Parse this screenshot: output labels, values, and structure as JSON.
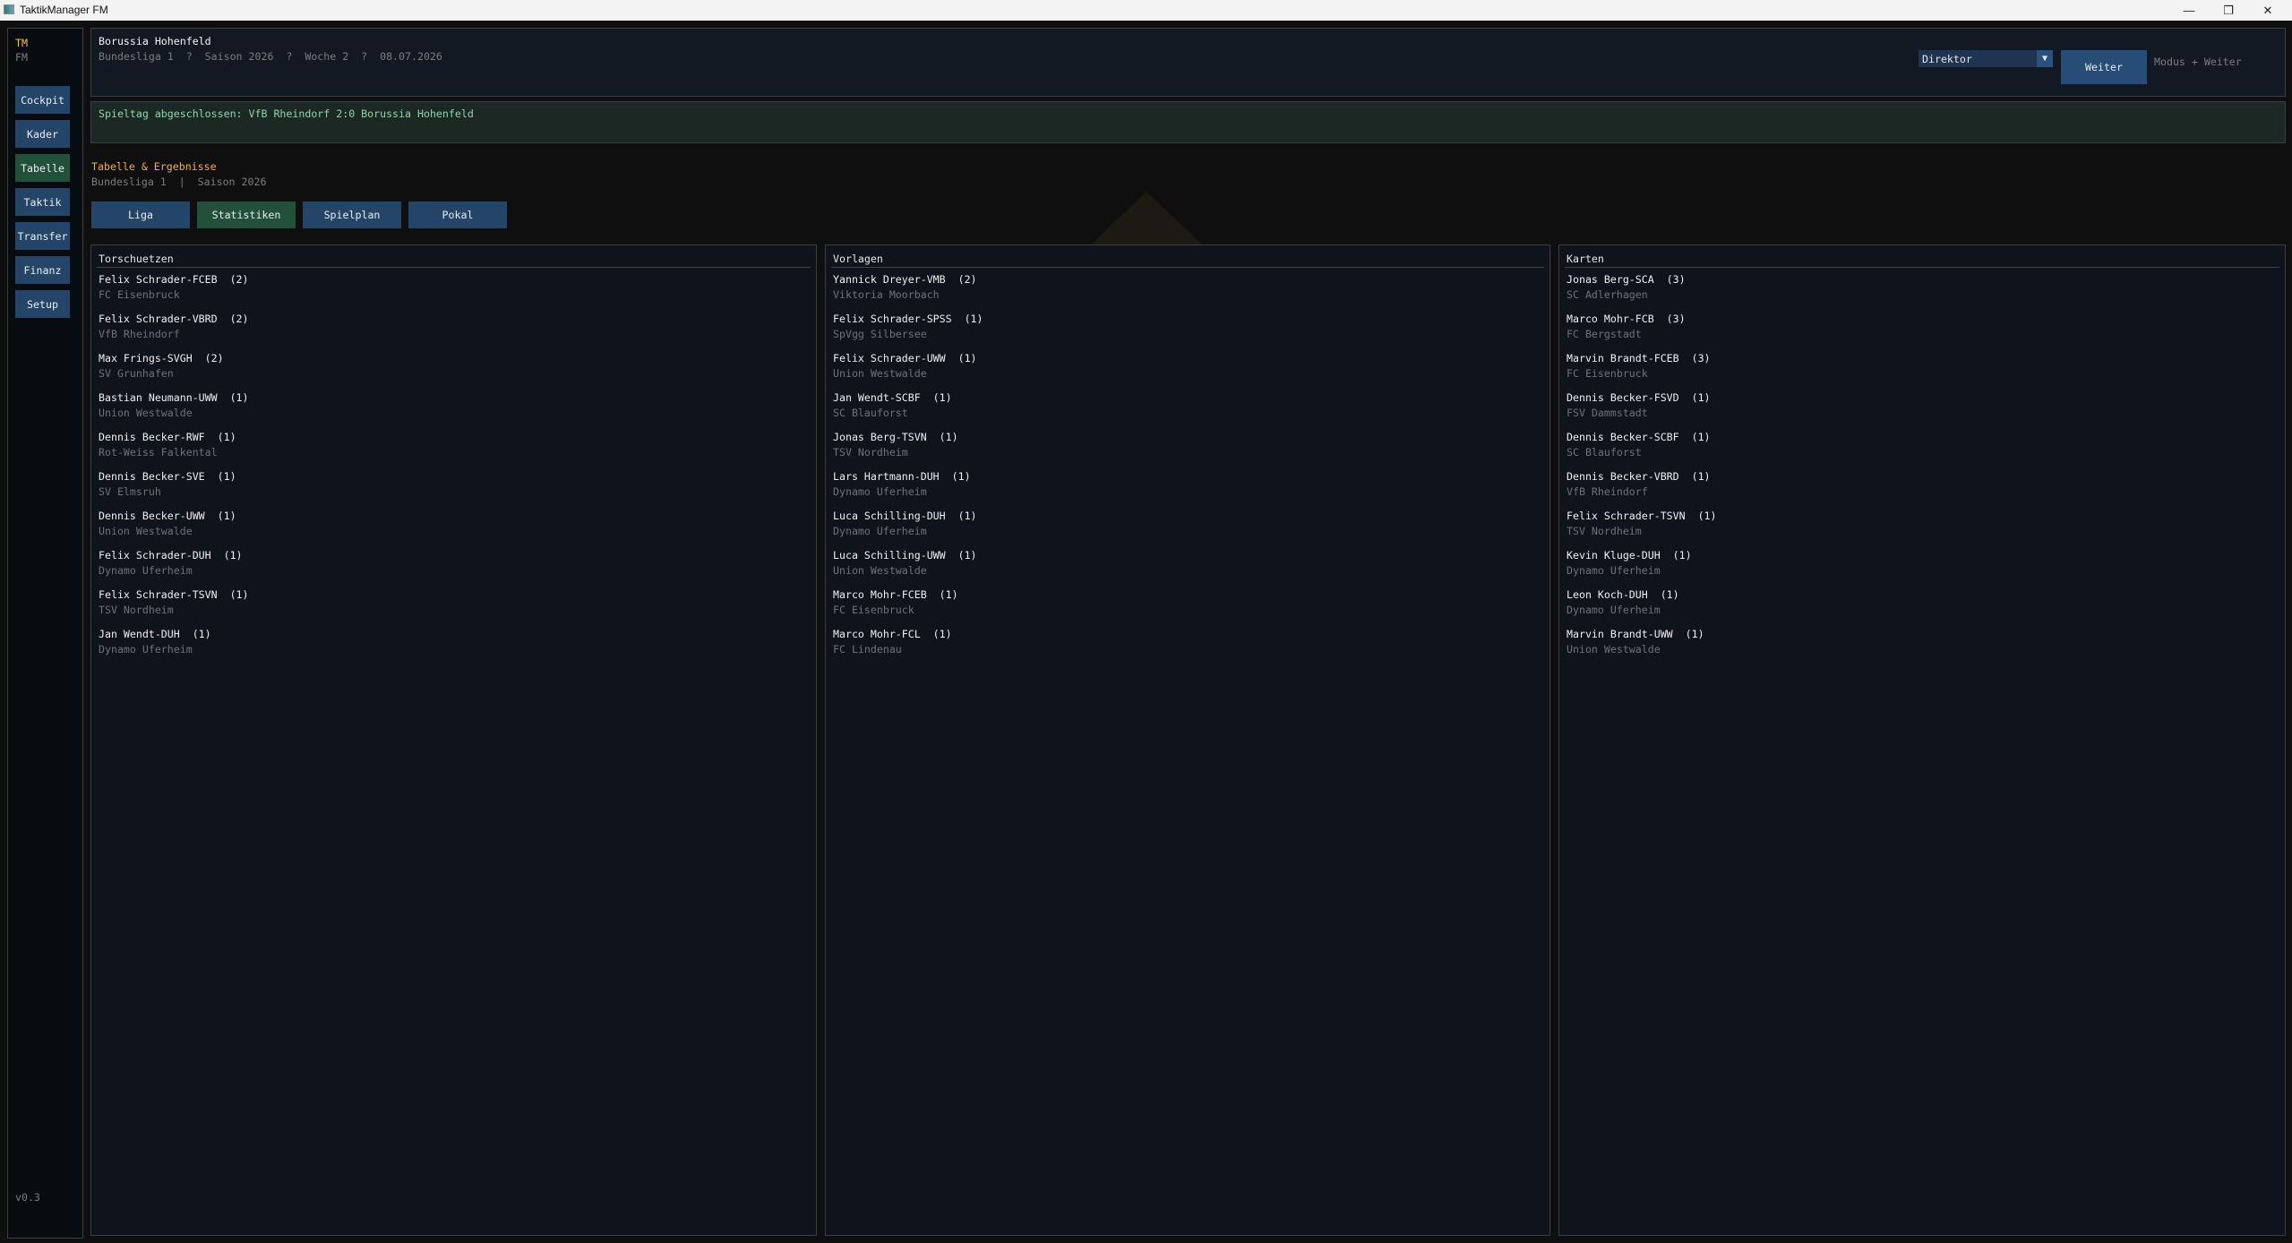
{
  "window": {
    "title": "TaktikManager FM"
  },
  "sidebar": {
    "logo_top": "TM",
    "logo_bottom": "FM",
    "items": [
      {
        "label": "Cockpit",
        "active": false
      },
      {
        "label": "Kader",
        "active": false
      },
      {
        "label": "Tabelle",
        "active": true
      },
      {
        "label": "Taktik",
        "active": false
      },
      {
        "label": "Transfer",
        "active": false
      },
      {
        "label": "Finanz",
        "active": false
      },
      {
        "label": "Setup",
        "active": false
      }
    ],
    "version": "v0.3"
  },
  "header": {
    "club": "Borussia Hohenfeld",
    "info": "Bundesliga 1  ?  Saison 2026  ?  Woche 2  ?  08.07.2026",
    "mode_select": "Direktor",
    "continue_label": "Weiter",
    "hint": "Modus + Weiter"
  },
  "notification": "Spieltag abgeschlossen: VfB Rheindorf 2:0 Borussia Hohenfeld",
  "section": {
    "title": "Tabelle & Ergebnisse",
    "subtitle": "Bundesliga 1  |  Saison 2026"
  },
  "tabs": [
    {
      "label": "Liga",
      "active": false
    },
    {
      "label": "Statistiken",
      "active": true
    },
    {
      "label": "Spielplan",
      "active": false
    },
    {
      "label": "Pokal",
      "active": false
    }
  ],
  "columns": [
    {
      "title": "Torschuetzen",
      "entries": [
        {
          "name": "Felix Schrader-FCEB  (2)",
          "team": "FC Eisenbruck"
        },
        {
          "name": "Felix Schrader-VBRD  (2)",
          "team": "VfB Rheindorf"
        },
        {
          "name": "Max Frings-SVGH  (2)",
          "team": "SV Grunhafen"
        },
        {
          "name": "Bastian Neumann-UWW  (1)",
          "team": "Union Westwalde"
        },
        {
          "name": "Dennis Becker-RWF  (1)",
          "team": "Rot-Weiss Falkental"
        },
        {
          "name": "Dennis Becker-SVE  (1)",
          "team": "SV Elmsruh"
        },
        {
          "name": "Dennis Becker-UWW  (1)",
          "team": "Union Westwalde"
        },
        {
          "name": "Felix Schrader-DUH  (1)",
          "team": "Dynamo Uferheim"
        },
        {
          "name": "Felix Schrader-TSVN  (1)",
          "team": "TSV Nordheim"
        },
        {
          "name": "Jan Wendt-DUH  (1)",
          "team": "Dynamo Uferheim"
        }
      ]
    },
    {
      "title": "Vorlagen",
      "entries": [
        {
          "name": "Yannick Dreyer-VMB  (2)",
          "team": "Viktoria Moorbach"
        },
        {
          "name": "Felix Schrader-SPSS  (1)",
          "team": "SpVgg Silbersee"
        },
        {
          "name": "Felix Schrader-UWW  (1)",
          "team": "Union Westwalde"
        },
        {
          "name": "Jan Wendt-SCBF  (1)",
          "team": "SC Blauforst"
        },
        {
          "name": "Jonas Berg-TSVN  (1)",
          "team": "TSV Nordheim"
        },
        {
          "name": "Lars Hartmann-DUH  (1)",
          "team": "Dynamo Uferheim"
        },
        {
          "name": "Luca Schilling-DUH  (1)",
          "team": "Dynamo Uferheim"
        },
        {
          "name": "Luca Schilling-UWW  (1)",
          "team": "Union Westwalde"
        },
        {
          "name": "Marco Mohr-FCEB  (1)",
          "team": "FC Eisenbruck"
        },
        {
          "name": "Marco Mohr-FCL  (1)",
          "team": "FC Lindenau"
        }
      ]
    },
    {
      "title": "Karten",
      "entries": [
        {
          "name": "Jonas Berg-SCA  (3)",
          "team": "SC Adlerhagen"
        },
        {
          "name": "Marco Mohr-FCB  (3)",
          "team": "FC Bergstadt"
        },
        {
          "name": "Marvin Brandt-FCEB  (3)",
          "team": "FC Eisenbruck"
        },
        {
          "name": "Dennis Becker-FSVD  (1)",
          "team": "FSV Dammstadt"
        },
        {
          "name": "Dennis Becker-SCBF  (1)",
          "team": "SC Blauforst"
        },
        {
          "name": "Dennis Becker-VBRD  (1)",
          "team": "VfB Rheindorf"
        },
        {
          "name": "Felix Schrader-TSVN  (1)",
          "team": "TSV Nordheim"
        },
        {
          "name": "Kevin Kluge-DUH  (1)",
          "team": "Dynamo Uferheim"
        },
        {
          "name": "Leon Koch-DUH  (1)",
          "team": "Dynamo Uferheim"
        },
        {
          "name": "Marvin Brandt-UWW  (1)",
          "team": "Union Westwalde"
        }
      ]
    }
  ],
  "colors": {
    "accent_gold": "#f0b050",
    "button_blue": "#244468",
    "active_green": "#22503a",
    "notification_text": "#8fd8a8"
  }
}
